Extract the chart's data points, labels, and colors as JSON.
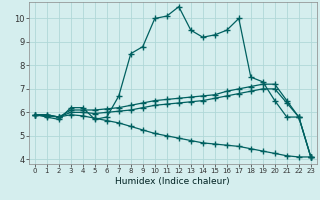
{
  "xlabel": "Humidex (Indice chaleur)",
  "xlim": [
    -0.5,
    23.5
  ],
  "ylim": [
    3.8,
    10.7
  ],
  "yticks": [
    4,
    5,
    6,
    7,
    8,
    9,
    10
  ],
  "xticks": [
    0,
    1,
    2,
    3,
    4,
    5,
    6,
    7,
    8,
    9,
    10,
    11,
    12,
    13,
    14,
    15,
    16,
    17,
    18,
    19,
    20,
    21,
    22,
    23
  ],
  "background_color": "#d5eeee",
  "grid_color": "#b0d8d8",
  "line_color": "#006060",
  "series1": [
    5.9,
    5.8,
    5.7,
    6.2,
    6.2,
    5.7,
    5.8,
    6.7,
    8.5,
    8.8,
    10.0,
    10.1,
    10.5,
    9.5,
    9.2,
    9.3,
    9.5,
    10.0,
    7.5,
    7.3,
    6.5,
    5.8,
    5.8,
    4.1
  ],
  "series2": [
    5.9,
    5.9,
    5.8,
    6.1,
    6.1,
    6.1,
    6.15,
    6.2,
    6.3,
    6.4,
    6.5,
    6.55,
    6.6,
    6.65,
    6.7,
    6.75,
    6.9,
    7.0,
    7.1,
    7.2,
    7.2,
    6.5,
    5.8,
    4.1
  ],
  "series3": [
    5.9,
    5.9,
    5.8,
    6.0,
    6.0,
    5.95,
    6.0,
    6.05,
    6.1,
    6.2,
    6.3,
    6.35,
    6.4,
    6.45,
    6.5,
    6.6,
    6.7,
    6.8,
    6.9,
    7.0,
    7.0,
    6.4,
    5.8,
    4.1
  ],
  "series4": [
    5.9,
    5.85,
    5.8,
    5.9,
    5.85,
    5.75,
    5.65,
    5.55,
    5.4,
    5.25,
    5.1,
    5.0,
    4.9,
    4.8,
    4.7,
    4.65,
    4.6,
    4.55,
    4.45,
    4.35,
    4.25,
    4.15,
    4.1,
    4.1
  ]
}
